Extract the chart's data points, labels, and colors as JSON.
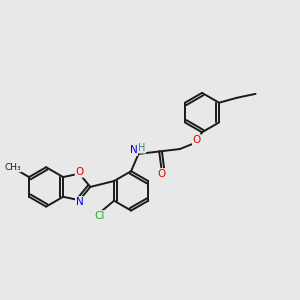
{
  "background_color": "#e8e8e8",
  "bond_color": "#1a1a1a",
  "bond_width": 1.4,
  "dbo": 0.055,
  "colors": {
    "C": "#1a1a1a",
    "N": "#0000ee",
    "O": "#ee0000",
    "Cl": "#22aa22",
    "H": "#338888"
  },
  "fontsize": 7.5
}
